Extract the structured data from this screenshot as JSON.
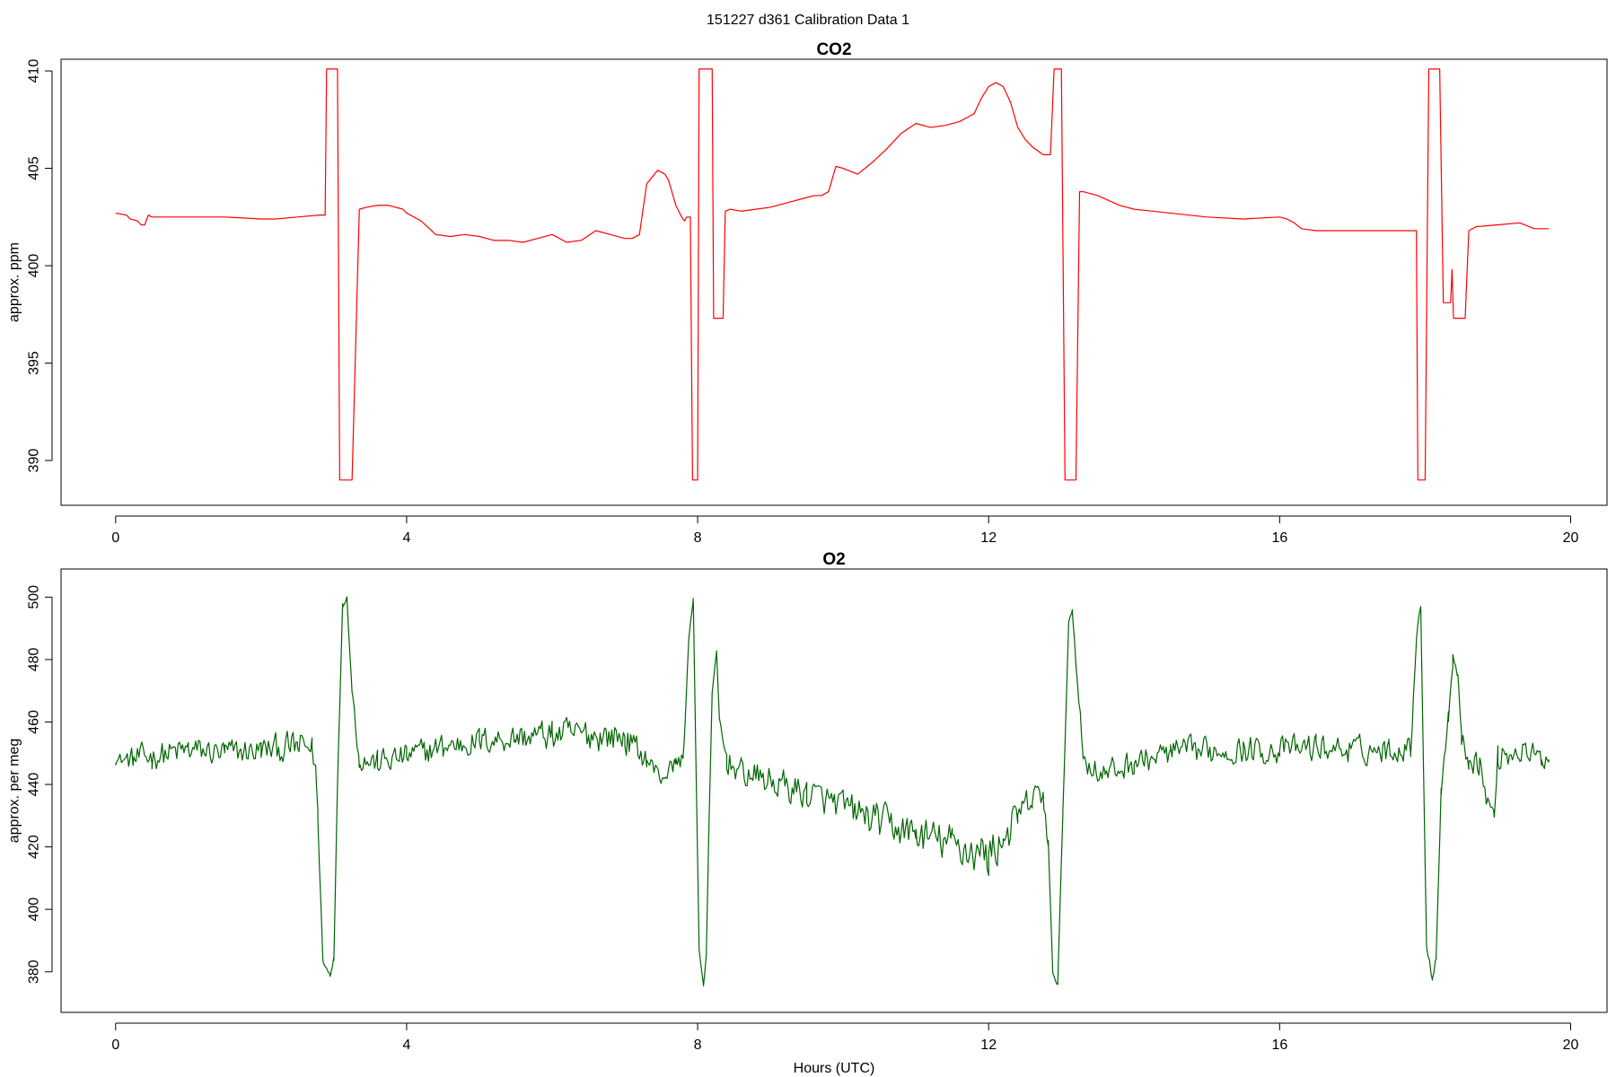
{
  "suptitle": "151227   d361   Calibration Data 1",
  "chart_data": [
    {
      "type": "line",
      "title": "CO2",
      "xlabel": "",
      "ylabel": "approx. ppm",
      "xlim": [
        -0.75,
        20.5
      ],
      "ylim": [
        387.7,
        410.6
      ],
      "xticks": [
        0,
        4,
        8,
        12,
        16,
        20
      ],
      "yticks": [
        390,
        395,
        400,
        405,
        410
      ],
      "grid": false,
      "color": "#ff0000",
      "series": [
        {
          "x": [
            0.0,
            0.15,
            0.2,
            0.3,
            0.35,
            0.4,
            0.45,
            0.5,
            1.0,
            1.5,
            2.0,
            2.2,
            2.5,
            2.8,
            2.88,
            2.9,
            3.05,
            3.08,
            3.12,
            3.2,
            3.25,
            3.35,
            3.45,
            3.6,
            3.75,
            3.95,
            4.0,
            4.2,
            4.4,
            4.6,
            4.8,
            5.0,
            5.2,
            5.4,
            5.6,
            5.8,
            6.0,
            6.2,
            6.4,
            6.6,
            6.8,
            7.0,
            7.1,
            7.2,
            7.3,
            7.45,
            7.55,
            7.6,
            7.7,
            7.78,
            7.82,
            7.85,
            7.9,
            7.93,
            8.0,
            8.02,
            8.18,
            8.2,
            8.22,
            8.35,
            8.38,
            8.45,
            8.6,
            8.8,
            9.0,
            9.2,
            9.4,
            9.6,
            9.7,
            9.8,
            9.9,
            10.0,
            10.2,
            10.4,
            10.6,
            10.8,
            11.0,
            11.2,
            11.4,
            11.6,
            11.8,
            11.9,
            12.0,
            12.1,
            12.2,
            12.3,
            12.4,
            12.5,
            12.6,
            12.75,
            12.85,
            12.9,
            13.0,
            13.05,
            13.1,
            13.15,
            13.2,
            13.25,
            13.3,
            13.5,
            13.8,
            14.0,
            14.5,
            15.0,
            15.5,
            16.0,
            16.1,
            16.2,
            16.3,
            16.5,
            17.0,
            17.5,
            17.8,
            17.88,
            17.9,
            18.0,
            18.05,
            18.2,
            18.25,
            18.35,
            18.37,
            18.39,
            18.41,
            18.55,
            18.6,
            18.7,
            19.0,
            19.3,
            19.5,
            19.7
          ],
          "y": [
            402.7,
            402.6,
            402.4,
            402.3,
            402.1,
            402.1,
            402.6,
            402.5,
            402.5,
            402.5,
            402.4,
            402.4,
            402.5,
            402.6,
            402.6,
            410.1,
            410.1,
            389.0,
            389.0,
            389.0,
            389.0,
            402.9,
            403.0,
            403.1,
            403.1,
            402.9,
            402.7,
            402.3,
            401.6,
            401.5,
            401.6,
            401.5,
            401.3,
            401.3,
            401.2,
            401.4,
            401.6,
            401.2,
            401.3,
            401.8,
            401.6,
            401.4,
            401.4,
            401.6,
            404.2,
            404.9,
            404.7,
            404.4,
            403.1,
            402.5,
            402.3,
            402.5,
            402.5,
            389.0,
            389.0,
            410.1,
            410.1,
            410.1,
            397.3,
            397.3,
            402.8,
            402.9,
            402.8,
            402.9,
            403.0,
            403.2,
            403.4,
            403.6,
            403.6,
            403.8,
            405.1,
            405.0,
            404.7,
            405.3,
            406.0,
            406.8,
            407.3,
            407.1,
            407.2,
            407.4,
            407.8,
            408.6,
            409.2,
            409.4,
            409.2,
            408.4,
            407.1,
            406.5,
            406.1,
            405.7,
            405.7,
            410.1,
            410.1,
            389.0,
            389.0,
            389.0,
            389.0,
            403.8,
            403.8,
            403.6,
            403.1,
            402.9,
            402.7,
            402.5,
            402.4,
            402.5,
            402.4,
            402.2,
            401.9,
            401.8,
            401.8,
            401.8,
            401.8,
            401.8,
            389.0,
            389.0,
            410.1,
            410.1,
            398.1,
            398.1,
            399.8,
            397.3,
            397.3,
            397.3,
            401.8,
            402.0,
            402.1,
            402.2,
            401.9,
            401.9
          ]
        }
      ]
    },
    {
      "type": "line",
      "title": "O2",
      "xlabel": "Hours (UTC)",
      "ylabel": "approx. per meg",
      "xlim": [
        -0.75,
        20.5
      ],
      "ylim": [
        367.0,
        509.0
      ],
      "xticks": [
        0,
        4,
        8,
        12,
        16,
        20
      ],
      "yticks": [
        380,
        400,
        420,
        440,
        460,
        480,
        500
      ],
      "grid": false,
      "color": "#006400",
      "noise_seed": 12345,
      "series": [
        {
          "x": [
            0.0,
            0.25,
            0.5,
            1.0,
            1.5,
            2.0,
            2.5,
            2.7,
            2.75,
            2.78,
            2.85,
            2.95,
            3.0,
            3.05,
            3.12,
            3.18,
            3.25,
            3.35,
            3.6,
            4.0,
            4.5,
            5.0,
            5.5,
            6.0,
            6.5,
            7.0,
            7.3,
            7.5,
            7.7,
            7.8,
            7.88,
            7.94,
            8.02,
            8.08,
            8.12,
            8.15,
            8.2,
            8.26,
            8.3,
            8.4,
            8.6,
            9.0,
            9.5,
            10.0,
            10.5,
            11.0,
            11.5,
            12.0,
            12.2,
            12.4,
            12.6,
            12.75,
            12.82,
            12.88,
            12.95,
            13.02,
            13.1,
            13.15,
            13.3,
            13.6,
            14.0,
            14.5,
            15.0,
            15.5,
            16.0,
            16.5,
            17.0,
            17.5,
            17.8,
            17.88,
            17.94,
            18.02,
            18.1,
            18.15,
            18.22,
            18.32,
            18.38,
            18.45,
            18.5,
            18.6,
            18.75,
            18.85,
            18.95,
            19.0,
            19.3,
            19.6,
            19.7
          ],
          "y": [
            448,
            448,
            449,
            451,
            450,
            451,
            452,
            452,
            445,
            430,
            383,
            379,
            385,
            440,
            498,
            500,
            470,
            448,
            447,
            449,
            452,
            454,
            455,
            456,
            456,
            455,
            448,
            442,
            447,
            448,
            487,
            499,
            388,
            376,
            385,
            420,
            470,
            482,
            460,
            448,
            444,
            441,
            437,
            433,
            428,
            424,
            421,
            417,
            423,
            429,
            435,
            437,
            420,
            380,
            376,
            430,
            492,
            496,
            448,
            443,
            447,
            450,
            451,
            451,
            451,
            452,
            451,
            451,
            452,
            487,
            497,
            388,
            378,
            385,
            438,
            462,
            480,
            476,
            454,
            449,
            447,
            435,
            430,
            449,
            451,
            448,
            449
          ],
          "noise": [
            2,
            6,
            6,
            6,
            6,
            6,
            7,
            6,
            5,
            4,
            2,
            1,
            2,
            1,
            2,
            1,
            3,
            5,
            6,
            6,
            6,
            6,
            6,
            7,
            7,
            7,
            5,
            4,
            4,
            4,
            1,
            1,
            2,
            2,
            2,
            2,
            1,
            1,
            3,
            6,
            6,
            7,
            7,
            7,
            8,
            8,
            9,
            10,
            9,
            8,
            7,
            6,
            4,
            1,
            1,
            2,
            1,
            1,
            6,
            6,
            6,
            6,
            6,
            6,
            6,
            6,
            6,
            6,
            5,
            3,
            1,
            2,
            2,
            2,
            3,
            4,
            4,
            3,
            5,
            6,
            6,
            4,
            4,
            6,
            6,
            5,
            4
          ]
        }
      ]
    }
  ]
}
